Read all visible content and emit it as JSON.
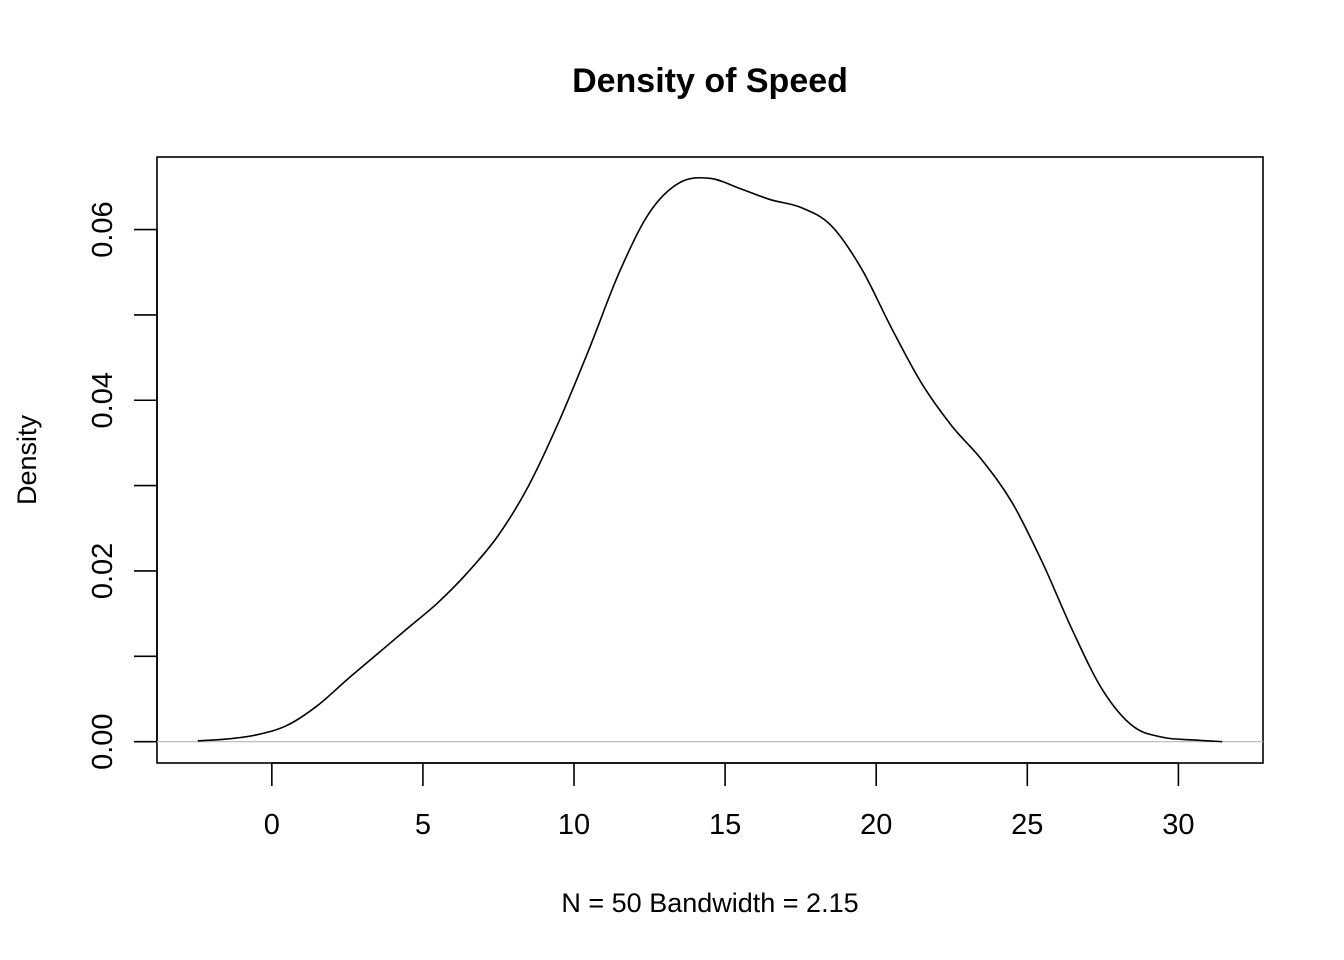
{
  "chart_data": {
    "type": "line",
    "title": "Density of Speed",
    "xlabel": "N = 50   Bandwidth = 2.15",
    "ylabel": "Density",
    "xlim": [
      -3.8,
      32.8
    ],
    "ylim": [
      -0.0025,
      0.0685
    ],
    "x_ticks": [
      0,
      5,
      10,
      15,
      20,
      25,
      30
    ],
    "x_tick_labels": [
      "0",
      "5",
      "10",
      "15",
      "20",
      "25",
      "30"
    ],
    "y_ticks": [
      0.0,
      0.01,
      0.02,
      0.03,
      0.04,
      0.05,
      0.06
    ],
    "y_tick_labels": [
      "0.00",
      "",
      "0.02",
      "",
      "0.04",
      "",
      "0.06"
    ],
    "baseline": 0,
    "grid": false,
    "legend": "none",
    "series": [
      {
        "x": [
          -2.45,
          -1.5,
          -0.5,
          0.5,
          1.5,
          2.5,
          3.5,
          4.5,
          5.5,
          6.5,
          7.5,
          8.5,
          9.5,
          10.5,
          11.5,
          12.5,
          13.5,
          14.5,
          15.5,
          16.5,
          17.5,
          18.5,
          19.5,
          20.5,
          21.5,
          22.5,
          23.5,
          24.5,
          25.5,
          26.5,
          27.5,
          28.5,
          29.5,
          30.5,
          31.45
        ],
        "y": [
          0.0001,
          0.0003,
          0.0008,
          0.0019,
          0.0042,
          0.0073,
          0.0103,
          0.0133,
          0.0163,
          0.0199,
          0.0242,
          0.03,
          0.0375,
          0.046,
          0.055,
          0.062,
          0.0655,
          0.066,
          0.0648,
          0.0635,
          0.0626,
          0.0605,
          0.0555,
          0.0485,
          0.042,
          0.037,
          0.033,
          0.028,
          0.021,
          0.013,
          0.006,
          0.0018,
          0.0005,
          0.0002,
          0.0
        ],
        "color": "#000000"
      }
    ],
    "colors": {
      "line": "#000000",
      "baseline": "#bebebe",
      "frame": "#000000"
    }
  }
}
